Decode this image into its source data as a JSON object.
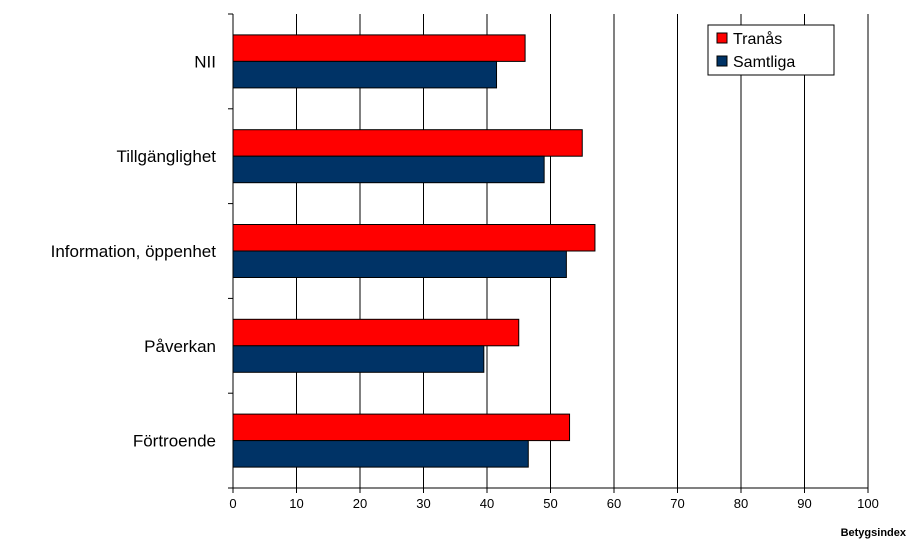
{
  "chart_data": {
    "type": "bar",
    "orientation": "horizontal",
    "categories": [
      "NII",
      "Tillgänglighet",
      "Information, öppenhet",
      "Påverkan",
      "Förtroende"
    ],
    "series": [
      {
        "name": "Tranås",
        "color": "#ff0000",
        "values": [
          46,
          55,
          57,
          45,
          53
        ]
      },
      {
        "name": "Samtliga",
        "color": "#003366",
        "values": [
          41.5,
          49,
          52.5,
          39.5,
          46.5
        ]
      }
    ],
    "xlabel": "Betygsindex",
    "xlim": [
      0,
      100
    ],
    "xticks": [
      "0",
      "10",
      "20",
      "30",
      "40",
      "50",
      "60",
      "70",
      "80",
      "90",
      "100"
    ],
    "grid": "vertical",
    "legend_position": "top-right"
  }
}
